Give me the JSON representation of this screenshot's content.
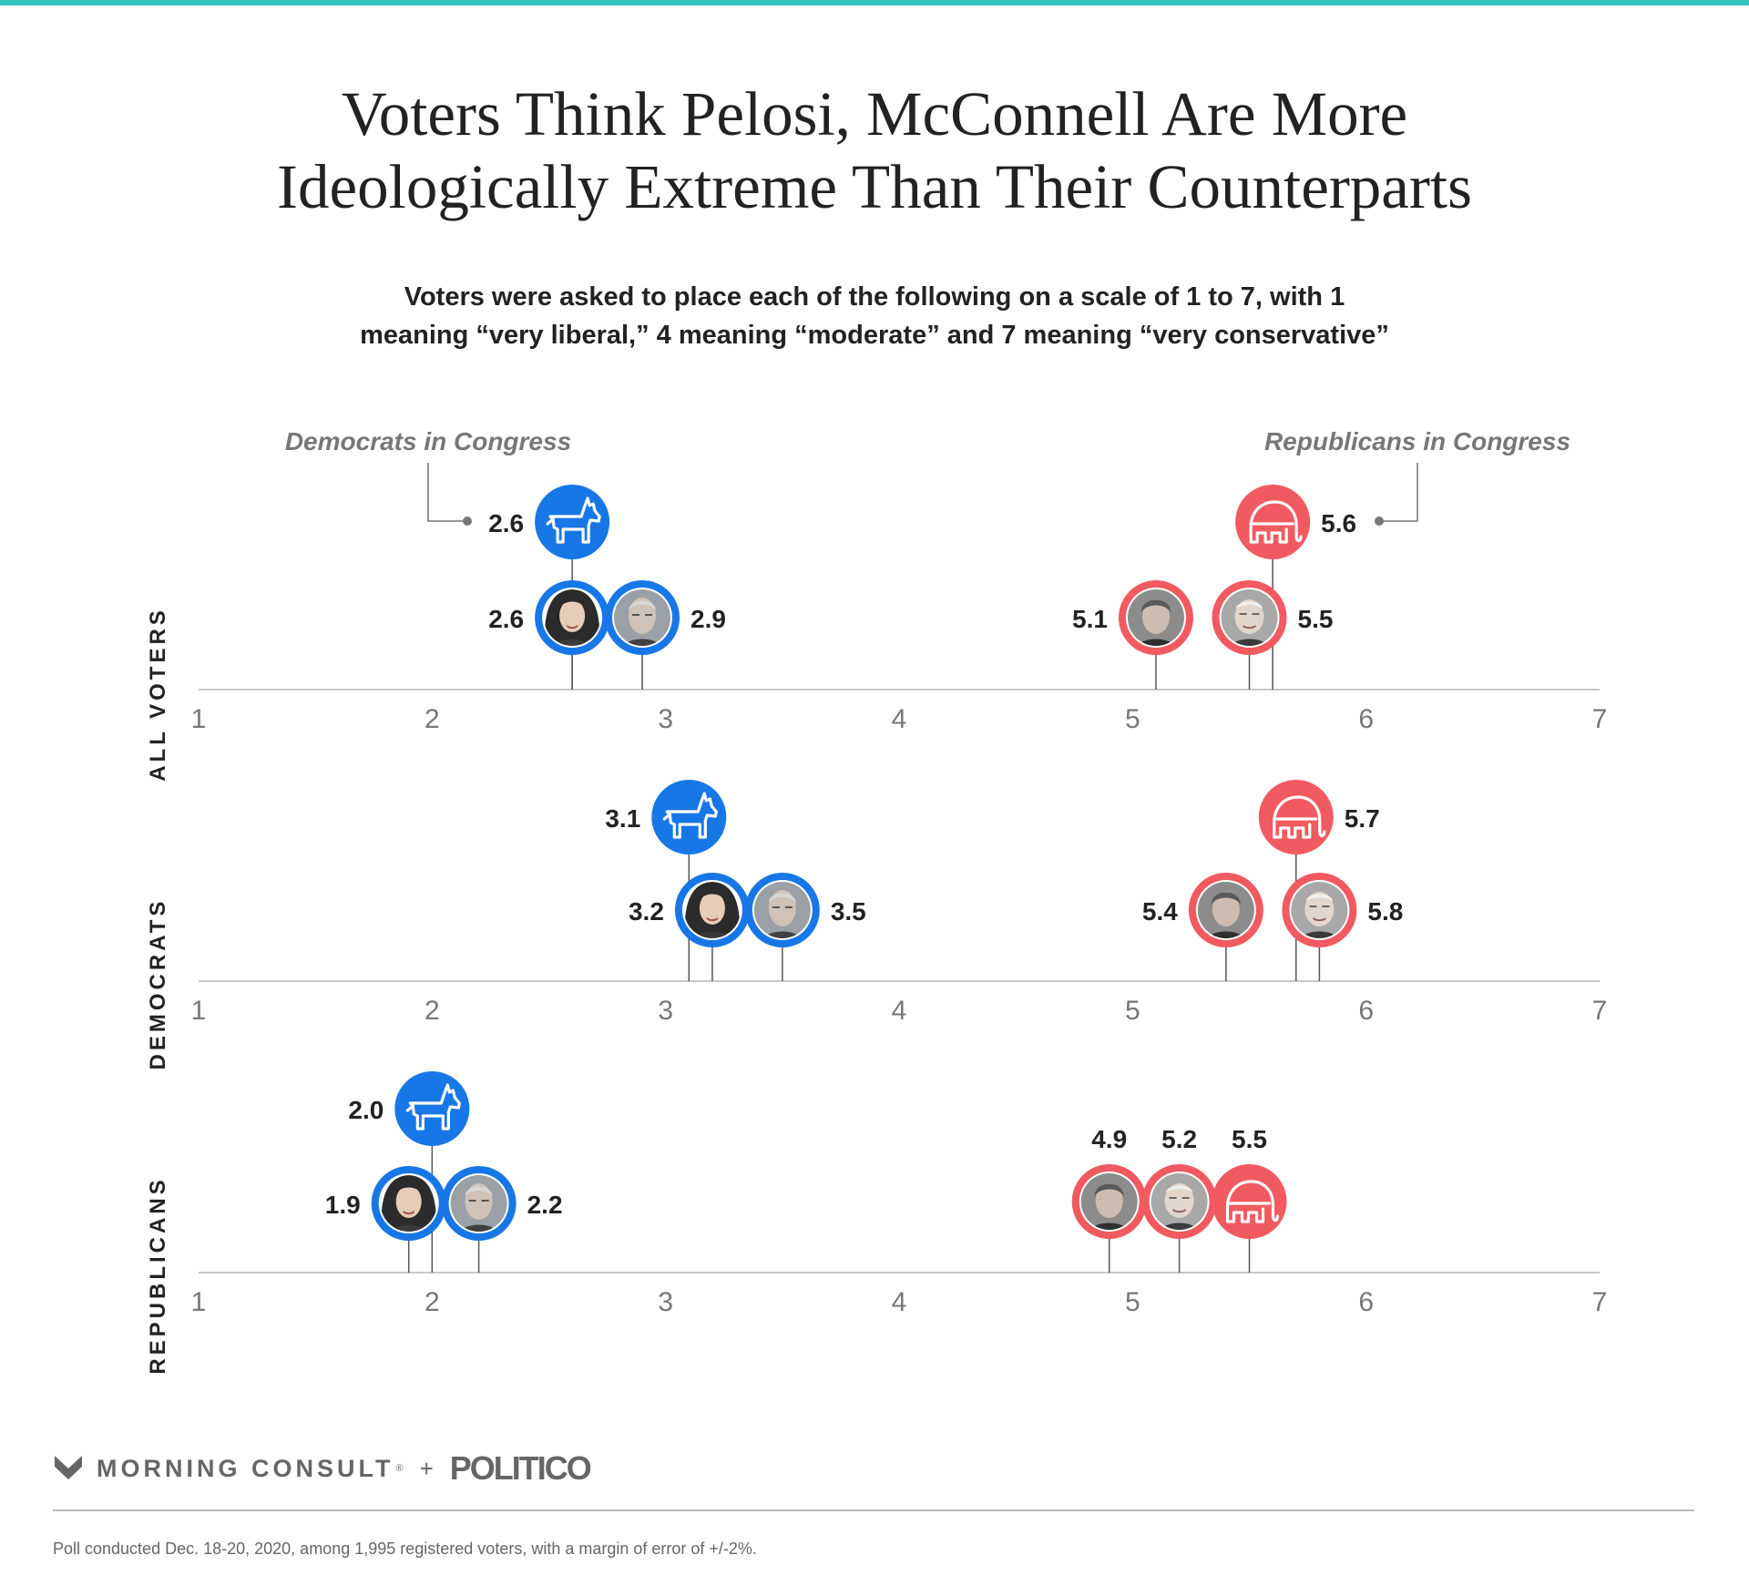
{
  "header": {
    "title_line1": "Voters Think Pelosi, McConnell Are More",
    "title_line2": "Ideologically Extreme Than Their Counterparts",
    "subtitle_line1": "Voters were asked to place each of the following on a scale of 1 to 7, with 1",
    "subtitle_line2": "meaning “very liberal,” 4 meaning “moderate” and 7 meaning “very conservative”"
  },
  "chart_data": {
    "type": "scatter",
    "xlim": [
      1,
      7
    ],
    "x_ticks": [
      "1",
      "2",
      "3",
      "4",
      "5",
      "6",
      "7"
    ],
    "annotations": {
      "democrats_in_congress": "Democrats in Congress",
      "republicans_in_congress": "Republicans in Congress"
    },
    "colors": {
      "democrat": "#1877e6",
      "republican": "#f05a60",
      "axis": "#c8c8c8",
      "text": "#222222"
    },
    "panels": [
      {
        "label": "ALL VOTERS",
        "points": [
          {
            "icon": "donkey-icon",
            "party": "democrat",
            "value": 2.6,
            "label": "2.6"
          },
          {
            "icon": "pelosi-portrait",
            "party": "democrat",
            "value": 2.6,
            "label": "2.6"
          },
          {
            "icon": "schumer-portrait",
            "party": "democrat",
            "value": 2.9,
            "label": "2.9"
          },
          {
            "icon": "elephant-icon",
            "party": "republican",
            "value": 5.6,
            "label": "5.6"
          },
          {
            "icon": "mccarthy-portrait",
            "party": "republican",
            "value": 5.1,
            "label": "5.1"
          },
          {
            "icon": "mcconnell-portrait",
            "party": "republican",
            "value": 5.5,
            "label": "5.5"
          }
        ]
      },
      {
        "label": "DEMOCRATS",
        "points": [
          {
            "icon": "donkey-icon",
            "party": "democrat",
            "value": 3.1,
            "label": "3.1"
          },
          {
            "icon": "pelosi-portrait",
            "party": "democrat",
            "value": 3.2,
            "label": "3.2"
          },
          {
            "icon": "schumer-portrait",
            "party": "democrat",
            "value": 3.5,
            "label": "3.5"
          },
          {
            "icon": "elephant-icon",
            "party": "republican",
            "value": 5.7,
            "label": "5.7"
          },
          {
            "icon": "mccarthy-portrait",
            "party": "republican",
            "value": 5.4,
            "label": "5.4"
          },
          {
            "icon": "mcconnell-portrait",
            "party": "republican",
            "value": 5.8,
            "label": "5.8"
          }
        ]
      },
      {
        "label": "REPUBLICANS",
        "points": [
          {
            "icon": "donkey-icon",
            "party": "democrat",
            "value": 2.0,
            "label": "2.0"
          },
          {
            "icon": "pelosi-portrait",
            "party": "democrat",
            "value": 1.9,
            "label": "1.9"
          },
          {
            "icon": "schumer-portrait",
            "party": "democrat",
            "value": 2.2,
            "label": "2.2"
          },
          {
            "icon": "mccarthy-portrait",
            "party": "republican",
            "value": 4.9,
            "label": "4.9"
          },
          {
            "icon": "mcconnell-portrait",
            "party": "republican",
            "value": 5.2,
            "label": "5.2"
          },
          {
            "icon": "elephant-icon",
            "party": "republican",
            "value": 5.5,
            "label": "5.5"
          }
        ]
      }
    ]
  },
  "footer": {
    "brand_morning_consult": "MORNING CONSULT",
    "brand_plus": "+",
    "brand_politico": "POLITICO",
    "footnote": "Poll conducted Dec. 18-20, 2020, among 1,995 registered voters, with a margin of error of +/-2%."
  }
}
